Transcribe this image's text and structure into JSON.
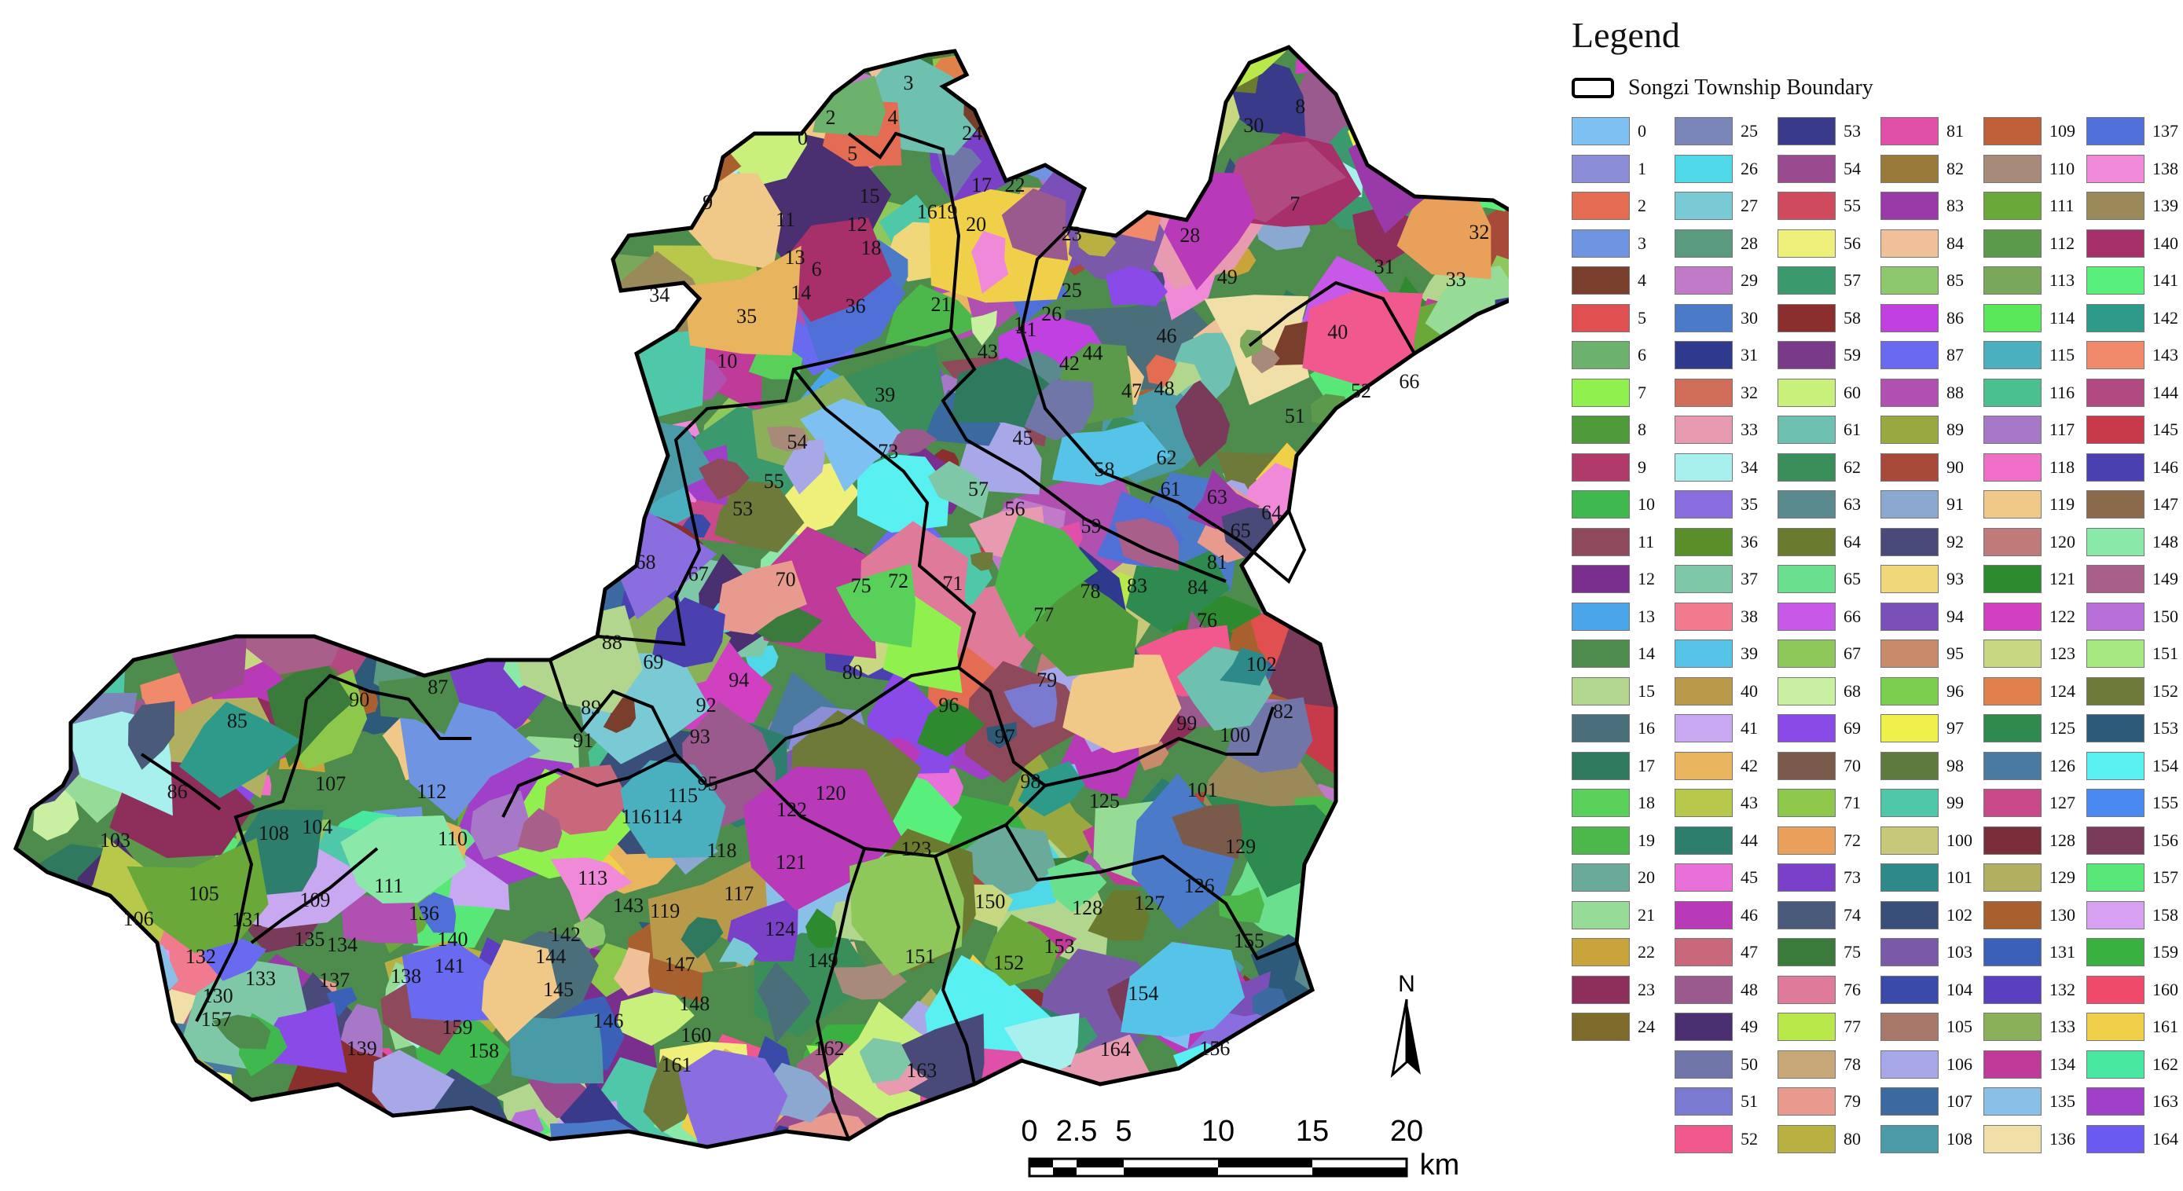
{
  "legend": {
    "title": "Legend",
    "boundary_label": "Songzi Township Boundary",
    "classes": [
      {
        "id": "0",
        "color": "#7fc0f2"
      },
      {
        "id": "1",
        "color": "#8b8dd6"
      },
      {
        "id": "2",
        "color": "#e36c52"
      },
      {
        "id": "3",
        "color": "#6f95e2"
      },
      {
        "id": "4",
        "color": "#7a3f2c"
      },
      {
        "id": "5",
        "color": "#e05050"
      },
      {
        "id": "6",
        "color": "#6cb26c"
      },
      {
        "id": "7",
        "color": "#8ff04e"
      },
      {
        "id": "8",
        "color": "#4f9a3a"
      },
      {
        "id": "9",
        "color": "#b03a6a"
      },
      {
        "id": "10",
        "color": "#3fb84e"
      },
      {
        "id": "11",
        "color": "#8e4a5a"
      },
      {
        "id": "12",
        "color": "#7a2e8e"
      },
      {
        "id": "13",
        "color": "#4aa6e8"
      },
      {
        "id": "14",
        "color": "#4e8c4e"
      },
      {
        "id": "15",
        "color": "#b2d68e"
      },
      {
        "id": "16",
        "color": "#4a6e7a"
      },
      {
        "id": "17",
        "color": "#2f7a5e"
      },
      {
        "id": "18",
        "color": "#58d05a"
      },
      {
        "id": "19",
        "color": "#4cb84c"
      },
      {
        "id": "20",
        "color": "#6aaa9a"
      },
      {
        "id": "21",
        "color": "#96dc96"
      },
      {
        "id": "22",
        "color": "#c8a43a"
      },
      {
        "id": "23",
        "color": "#8e2e5a"
      },
      {
        "id": "24",
        "color": "#7e6a2a"
      },
      {
        "id": "25",
        "color": "#7a86b8"
      },
      {
        "id": "26",
        "color": "#4ed8e8"
      },
      {
        "id": "27",
        "color": "#7acad6"
      },
      {
        "id": "28",
        "color": "#5a9a7e"
      },
      {
        "id": "29",
        "color": "#c07ac8"
      },
      {
        "id": "30",
        "color": "#4a7ac8"
      },
      {
        "id": "31",
        "color": "#2e3a8e"
      },
      {
        "id": "32",
        "color": "#d06e5a"
      },
      {
        "id": "33",
        "color": "#e89ab0"
      },
      {
        "id": "34",
        "color": "#a8f0ee"
      },
      {
        "id": "35",
        "color": "#8a6ee0"
      },
      {
        "id": "36",
        "color": "#5a8e2a"
      },
      {
        "id": "37",
        "color": "#7ec8a8"
      },
      {
        "id": "38",
        "color": "#f07a8e"
      },
      {
        "id": "39",
        "color": "#56c4e8"
      },
      {
        "id": "40",
        "color": "#b89a4a"
      },
      {
        "id": "41",
        "color": "#c8a8f0"
      },
      {
        "id": "42",
        "color": "#e8b45e"
      },
      {
        "id": "43",
        "color": "#b8c84a"
      },
      {
        "id": "44",
        "color": "#2e7e6e"
      },
      {
        "id": "45",
        "color": "#e870d8"
      },
      {
        "id": "46",
        "color": "#b83ab8"
      },
      {
        "id": "47",
        "color": "#c8687a"
      },
      {
        "id": "48",
        "color": "#9a5a8e"
      },
      {
        "id": "49",
        "color": "#4a3070"
      },
      {
        "id": "50",
        "color": "#7076a8"
      },
      {
        "id": "51",
        "color": "#7a7ad0"
      },
      {
        "id": "52",
        "color": "#f0588e"
      },
      {
        "id": "53",
        "color": "#3a3a8a"
      },
      {
        "id": "54",
        "color": "#9a4a8e"
      },
      {
        "id": "55",
        "color": "#d04a5e"
      },
      {
        "id": "56",
        "color": "#eef07a"
      },
      {
        "id": "57",
        "color": "#3a9a6e"
      },
      {
        "id": "58",
        "color": "#8a2e2e"
      },
      {
        "id": "59",
        "color": "#7a3a8a"
      },
      {
        "id": "60",
        "color": "#c8f07a"
      },
      {
        "id": "61",
        "color": "#6ec0b0"
      },
      {
        "id": "62",
        "color": "#3a8e5a"
      },
      {
        "id": "63",
        "color": "#5a8a8e"
      },
      {
        "id": "64",
        "color": "#6a7a2e"
      },
      {
        "id": "65",
        "color": "#6ae08e"
      },
      {
        "id": "66",
        "color": "#c858e8"
      },
      {
        "id": "67",
        "color": "#8ec85a"
      },
      {
        "id": "68",
        "color": "#c8f0a0"
      },
      {
        "id": "69",
        "color": "#8a4ae8"
      },
      {
        "id": "70",
        "color": "#7a5a4a"
      },
      {
        "id": "71",
        "color": "#8ec84a"
      },
      {
        "id": "72",
        "color": "#e8a05a"
      },
      {
        "id": "73",
        "color": "#7a40c8"
      },
      {
        "id": "74",
        "color": "#4a5a7a"
      },
      {
        "id": "75",
        "color": "#3a7a3a"
      },
      {
        "id": "76",
        "color": "#e07a9a"
      },
      {
        "id": "77",
        "color": "#b8e84a"
      },
      {
        "id": "78",
        "color": "#c8a878"
      },
      {
        "id": "79",
        "color": "#e89a8e"
      },
      {
        "id": "80",
        "color": "#b8b040"
      },
      {
        "id": "81",
        "color": "#e050a8"
      },
      {
        "id": "82",
        "color": "#9a7a3a"
      },
      {
        "id": "83",
        "color": "#9a3aa8"
      },
      {
        "id": "84",
        "color": "#f0c098"
      },
      {
        "id": "85",
        "color": "#8ec86e"
      },
      {
        "id": "86",
        "color": "#c040e0"
      },
      {
        "id": "87",
        "color": "#6a6af0"
      },
      {
        "id": "88",
        "color": "#b050b0"
      },
      {
        "id": "89",
        "color": "#9aa840"
      },
      {
        "id": "90",
        "color": "#a84a3a"
      },
      {
        "id": "91",
        "color": "#8aa8d0"
      },
      {
        "id": "92",
        "color": "#4a4a7a"
      },
      {
        "id": "93",
        "color": "#f0d87a"
      },
      {
        "id": "94",
        "color": "#7a50b8"
      },
      {
        "id": "95",
        "color": "#c88a6a"
      },
      {
        "id": "96",
        "color": "#7ad04e"
      },
      {
        "id": "97",
        "color": "#f0f04a"
      },
      {
        "id": "98",
        "color": "#5e7a3e"
      },
      {
        "id": "99",
        "color": "#4ec8a8"
      },
      {
        "id": "100",
        "color": "#c8c87a"
      },
      {
        "id": "101",
        "color": "#2e8a8a"
      },
      {
        "id": "102",
        "color": "#3a4e7a"
      },
      {
        "id": "103",
        "color": "#7a5aa8"
      },
      {
        "id": "104",
        "color": "#3a4aa8"
      },
      {
        "id": "105",
        "color": "#a8786a"
      },
      {
        "id": "106",
        "color": "#a8a8e8"
      },
      {
        "id": "107",
        "color": "#3a6aa0"
      },
      {
        "id": "108",
        "color": "#4a9aa8"
      },
      {
        "id": "109",
        "color": "#c0603a"
      },
      {
        "id": "110",
        "color": "#a88a7a"
      },
      {
        "id": "111",
        "color": "#6aa83a"
      },
      {
        "id": "112",
        "color": "#5a9a4a"
      },
      {
        "id": "113",
        "color": "#7aa85a"
      },
      {
        "id": "114",
        "color": "#58e858"
      },
      {
        "id": "115",
        "color": "#4ab0c0"
      },
      {
        "id": "116",
        "color": "#4ac08e"
      },
      {
        "id": "117",
        "color": "#a878c8"
      },
      {
        "id": "118",
        "color": "#f070c8"
      },
      {
        "id": "119",
        "color": "#f0c888"
      },
      {
        "id": "120",
        "color": "#c07a7a"
      },
      {
        "id": "121",
        "color": "#2e8a2e"
      },
      {
        "id": "122",
        "color": "#d040c0"
      },
      {
        "id": "123",
        "color": "#c8d880"
      },
      {
        "id": "124",
        "color": "#e0804a"
      },
      {
        "id": "125",
        "color": "#2e8a4e"
      },
      {
        "id": "126",
        "color": "#4a7aa0"
      },
      {
        "id": "127",
        "color": "#c84a8a"
      },
      {
        "id": "128",
        "color": "#7a2e3a"
      },
      {
        "id": "129",
        "color": "#b0b060"
      },
      {
        "id": "130",
        "color": "#a8602e"
      },
      {
        "id": "131",
        "color": "#3a60b8"
      },
      {
        "id": "132",
        "color": "#5a40c0"
      },
      {
        "id": "133",
        "color": "#8ab05a"
      },
      {
        "id": "134",
        "color": "#c03a9a"
      },
      {
        "id": "135",
        "color": "#8ac0e8"
      },
      {
        "id": "136",
        "color": "#f0e0a8"
      },
      {
        "id": "137",
        "color": "#5070d8"
      },
      {
        "id": "138",
        "color": "#f08ad8"
      },
      {
        "id": "139",
        "color": "#9a8a5a"
      },
      {
        "id": "140",
        "color": "#a8306a"
      },
      {
        "id": "141",
        "color": "#58f07a"
      },
      {
        "id": "142",
        "color": "#2e9a8a"
      },
      {
        "id": "143",
        "color": "#f08a6a"
      },
      {
        "id": "144",
        "color": "#b04a80"
      },
      {
        "id": "145",
        "color": "#c83a4a"
      },
      {
        "id": "146",
        "color": "#4a40b0"
      },
      {
        "id": "147",
        "color": "#8a6a4a"
      },
      {
        "id": "148",
        "color": "#8ae8a8"
      },
      {
        "id": "149",
        "color": "#a8608a"
      },
      {
        "id": "150",
        "color": "#b870d8"
      },
      {
        "id": "151",
        "color": "#a8e880"
      },
      {
        "id": "152",
        "color": "#6e7a3a"
      },
      {
        "id": "153",
        "color": "#2e5a7a"
      },
      {
        "id": "154",
        "color": "#58f0f0"
      },
      {
        "id": "155",
        "color": "#4a8af0"
      },
      {
        "id": "156",
        "color": "#7a3a5a"
      },
      {
        "id": "157",
        "color": "#58e878"
      },
      {
        "id": "158",
        "color": "#d8a0f0"
      },
      {
        "id": "159",
        "color": "#3ab040"
      },
      {
        "id": "160",
        "color": "#f04a6a"
      },
      {
        "id": "161",
        "color": "#f0d048"
      },
      {
        "id": "162",
        "color": "#48e8a0"
      },
      {
        "id": "163",
        "color": "#a040c8"
      },
      {
        "id": "164",
        "color": "#6a5af0"
      }
    ]
  },
  "map": {
    "labels": [
      "0",
      "1",
      "2",
      "3",
      "4",
      "5",
      "6",
      "7",
      "8",
      "9",
      "10",
      "11",
      "12",
      "13",
      "14",
      "15",
      "16",
      "17",
      "18",
      "19",
      "20",
      "21",
      "22",
      "23",
      "24",
      "25",
      "26",
      "28",
      "30",
      "31",
      "32",
      "33",
      "34",
      "35",
      "36",
      "39",
      "40",
      "41",
      "42",
      "43",
      "44",
      "45",
      "46",
      "47",
      "48",
      "49",
      "51",
      "52",
      "53",
      "54",
      "55",
      "56",
      "57",
      "58",
      "59",
      "61",
      "62",
      "63",
      "64",
      "65",
      "66",
      "67",
      "68",
      "69",
      "70",
      "71",
      "72",
      "73",
      "75",
      "76",
      "77",
      "78",
      "79",
      "80",
      "81",
      "82",
      "83",
      "84",
      "85",
      "86",
      "87",
      "88",
      "89",
      "90",
      "91",
      "92",
      "93",
      "94",
      "95",
      "96",
      "97",
      "98",
      "99",
      "100",
      "101",
      "102",
      "103",
      "104",
      "105",
      "106",
      "107",
      "108",
      "109",
      "110",
      "111",
      "112",
      "113",
      "114",
      "115",
      "116",
      "117",
      "118",
      "119",
      "120",
      "121",
      "122",
      "123",
      "124",
      "125",
      "126",
      "127",
      "128",
      "129",
      "130",
      "131",
      "132",
      "133",
      "134",
      "135",
      "136",
      "137",
      "138",
      "139",
      "140",
      "141",
      "142",
      "143",
      "144",
      "145",
      "146",
      "147",
      "148",
      "149",
      "150",
      "151",
      "152",
      "153",
      "154",
      "155",
      "156",
      "157",
      "158",
      "159",
      "160",
      "161",
      "162",
      "163",
      "164"
    ]
  },
  "north_arrow": {
    "label": "N"
  },
  "scale_bar": {
    "ticks": [
      "0",
      "2.5",
      "5",
      "10",
      "15",
      "20"
    ],
    "unit": "km"
  }
}
